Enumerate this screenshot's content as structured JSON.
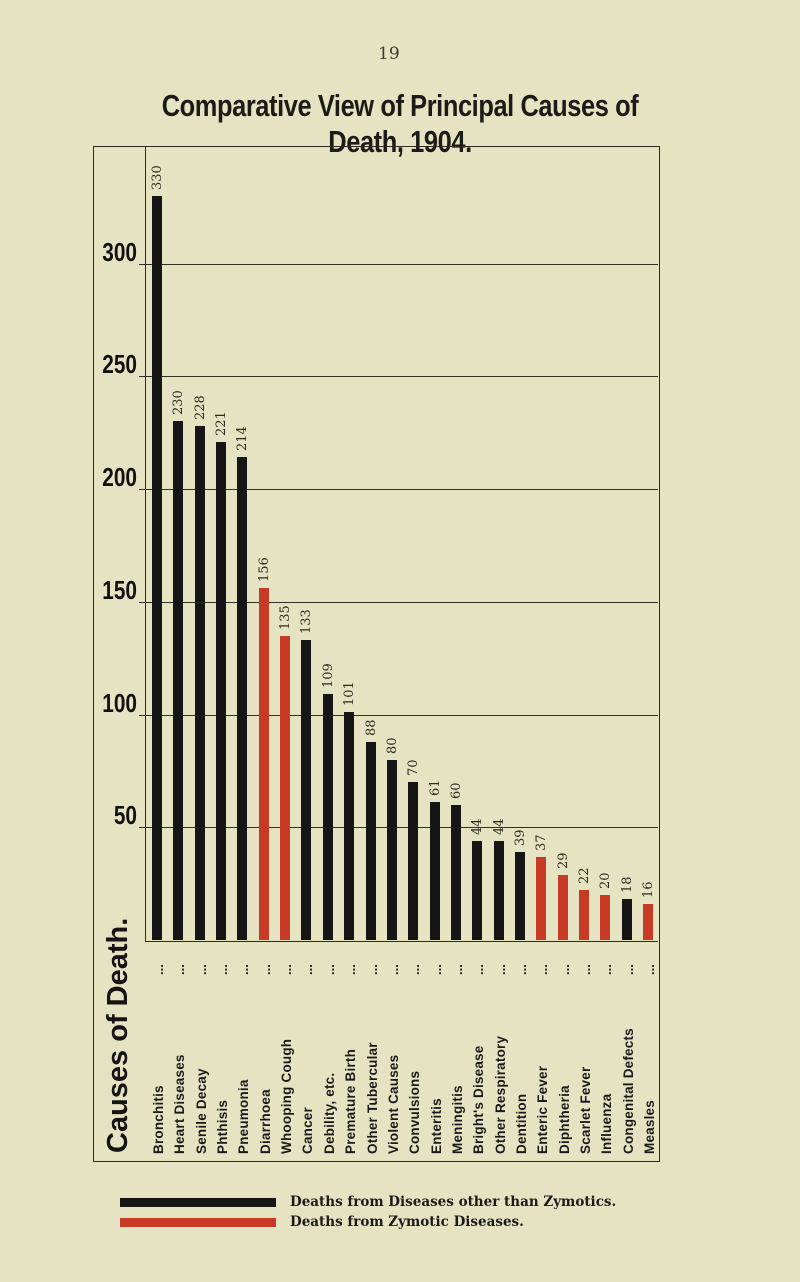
{
  "page": {
    "number": "19"
  },
  "title": "Comparative View of Principal Causes of Death, 1904.",
  "colors": {
    "non_zymotic": "#151515",
    "zymotic": "#c63a26",
    "background": "#e6e3c2"
  },
  "axis": {
    "y_ticks": [
      "50",
      "100",
      "150",
      "200",
      "250",
      "300"
    ],
    "x_heading": "Causes of Death.",
    "category_suffix": "..."
  },
  "legend": {
    "items": [
      {
        "label": "Deaths from Diseases other than Zymotics.",
        "color": "#151515"
      },
      {
        "label": "Deaths from Zymotic Diseases.",
        "color": "#c63a26"
      }
    ]
  },
  "chart_data": {
    "type": "bar",
    "title": "Comparative View of Principal Causes of Death, 1904.",
    "xlabel": "Causes of Death.",
    "ylabel": "",
    "ylim": [
      0,
      350
    ],
    "yticks": [
      50,
      100,
      150,
      200,
      250,
      300
    ],
    "grid": true,
    "legend_position": "bottom",
    "categories": [
      "Bronchitis",
      "Heart Diseases",
      "Senile Decay",
      "Phthisis",
      "Pneumonia",
      "Diarrhoea",
      "Whooping Cough",
      "Cancer",
      "Debility, etc.",
      "Premature Birth",
      "Other Tubercular",
      "Violent Causes",
      "Convulsions",
      "Enteritis",
      "Meningitis",
      "Bright's Disease",
      "Other Respiratory",
      "Dentition",
      "Enteric Fever",
      "Diphtheria",
      "Scarlet Fever",
      "Influenza",
      "Congenital Defects",
      "Measles"
    ],
    "values": [
      330,
      230,
      228,
      221,
      214,
      156,
      135,
      133,
      109,
      101,
      88,
      80,
      70,
      61,
      60,
      44,
      44,
      39,
      37,
      29,
      22,
      20,
      18,
      16
    ],
    "value_labels": [
      "330",
      "230",
      "228",
      "221",
      "214",
      "156",
      "135",
      "133",
      "109",
      "101",
      "88",
      "80",
      "70",
      "61",
      "60",
      "44",
      "44",
      "39",
      "37",
      "29",
      "22",
      "20",
      "18",
      "16"
    ],
    "group": [
      "other",
      "other",
      "other",
      "other",
      "other",
      "zymotic",
      "zymotic",
      "other",
      "other",
      "other",
      "other",
      "other",
      "other",
      "other",
      "other",
      "other",
      "other",
      "other",
      "zymotic",
      "zymotic",
      "zymotic",
      "zymotic",
      "other",
      "zymotic"
    ],
    "series": [
      {
        "name": "Deaths from Diseases other than Zymotics.",
        "values": [
          330,
          230,
          228,
          221,
          214,
          null,
          null,
          133,
          109,
          101,
          88,
          80,
          70,
          61,
          60,
          44,
          44,
          39,
          null,
          null,
          null,
          null,
          18,
          null
        ]
      },
      {
        "name": "Deaths from Zymotic Diseases.",
        "values": [
          null,
          null,
          null,
          null,
          null,
          156,
          135,
          null,
          null,
          null,
          null,
          null,
          null,
          null,
          null,
          null,
          null,
          null,
          37,
          29,
          22,
          20,
          null,
          16
        ]
      }
    ]
  }
}
